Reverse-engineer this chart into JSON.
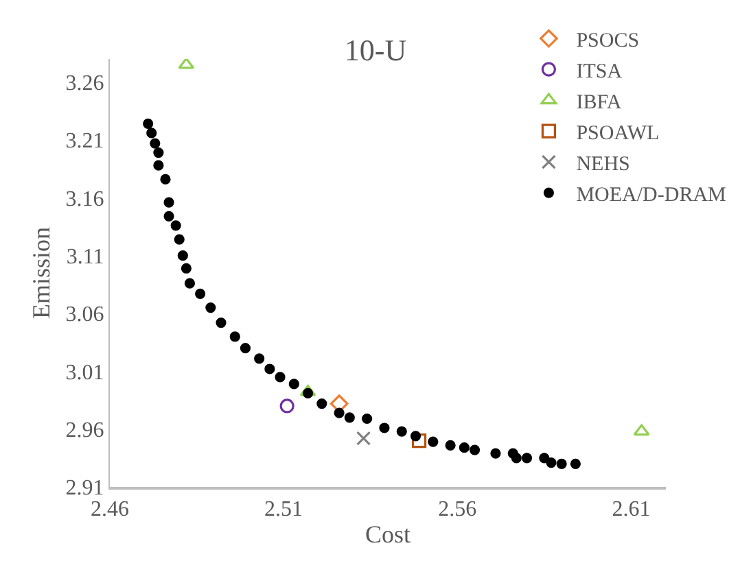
{
  "chart_data": {
    "type": "scatter",
    "title": "10-U",
    "xlabel": "Cost",
    "ylabel": "Emission",
    "xlim": [
      2.46,
      2.62
    ],
    "xticks": [
      2.46,
      2.51,
      2.56,
      2.61
    ],
    "ylim": [
      2.91,
      3.28
    ],
    "yticks": [
      2.91,
      2.96,
      3.01,
      3.06,
      3.11,
      3.16,
      3.21,
      3.26
    ],
    "grid": false,
    "legend": "top right",
    "series": [
      {
        "name": "PSOCS",
        "color": "#ed7d31",
        "marker": "diamond",
        "x": [
          2.526
        ],
        "values": [
          2.982
        ]
      },
      {
        "name": "ITSA",
        "color": "#7030a0",
        "marker": "circle",
        "x": [
          2.511
        ],
        "values": [
          2.98
        ]
      },
      {
        "name": "IBFA",
        "color": "#92d050",
        "marker": "triangle",
        "x": [
          2.482,
          2.517,
          2.613
        ],
        "values": [
          3.275,
          2.992,
          2.958
        ]
      },
      {
        "name": "PSOAWL",
        "color": "#b5520f",
        "marker": "square",
        "x": [
          2.549
        ],
        "values": [
          2.95
        ]
      },
      {
        "name": "NEHS",
        "color": "#808080",
        "marker": "cross",
        "x": [
          2.533
        ],
        "values": [
          2.952
        ]
      },
      {
        "name": "MOEA/D-DRAM",
        "color": "#000000",
        "marker": "circle",
        "x": [
          2.471,
          2.472,
          2.473,
          2.474,
          2.474,
          2.476,
          2.477,
          2.477,
          2.479,
          2.48,
          2.481,
          2.482,
          2.483,
          2.486,
          2.489,
          2.492,
          2.496,
          2.499,
          2.503,
          2.506,
          2.509,
          2.513,
          2.517,
          2.521,
          2.526,
          2.529,
          2.534,
          2.539,
          2.544,
          2.548,
          2.553,
          2.558,
          2.562,
          2.565,
          2.571,
          2.576,
          2.577,
          2.58,
          2.585,
          2.587,
          2.59,
          2.594
        ],
        "values": [
          3.224,
          3.216,
          3.207,
          3.199,
          3.188,
          3.176,
          3.156,
          3.144,
          3.136,
          3.124,
          3.11,
          3.099,
          3.086,
          3.077,
          3.065,
          3.052,
          3.04,
          3.03,
          3.021,
          3.012,
          3.005,
          2.999,
          2.991,
          2.982,
          2.974,
          2.97,
          2.969,
          2.961,
          2.958,
          2.954,
          2.949,
          2.946,
          2.944,
          2.942,
          2.939,
          2.939,
          2.935,
          2.935,
          2.935,
          2.931,
          2.93,
          2.93
        ]
      }
    ]
  }
}
